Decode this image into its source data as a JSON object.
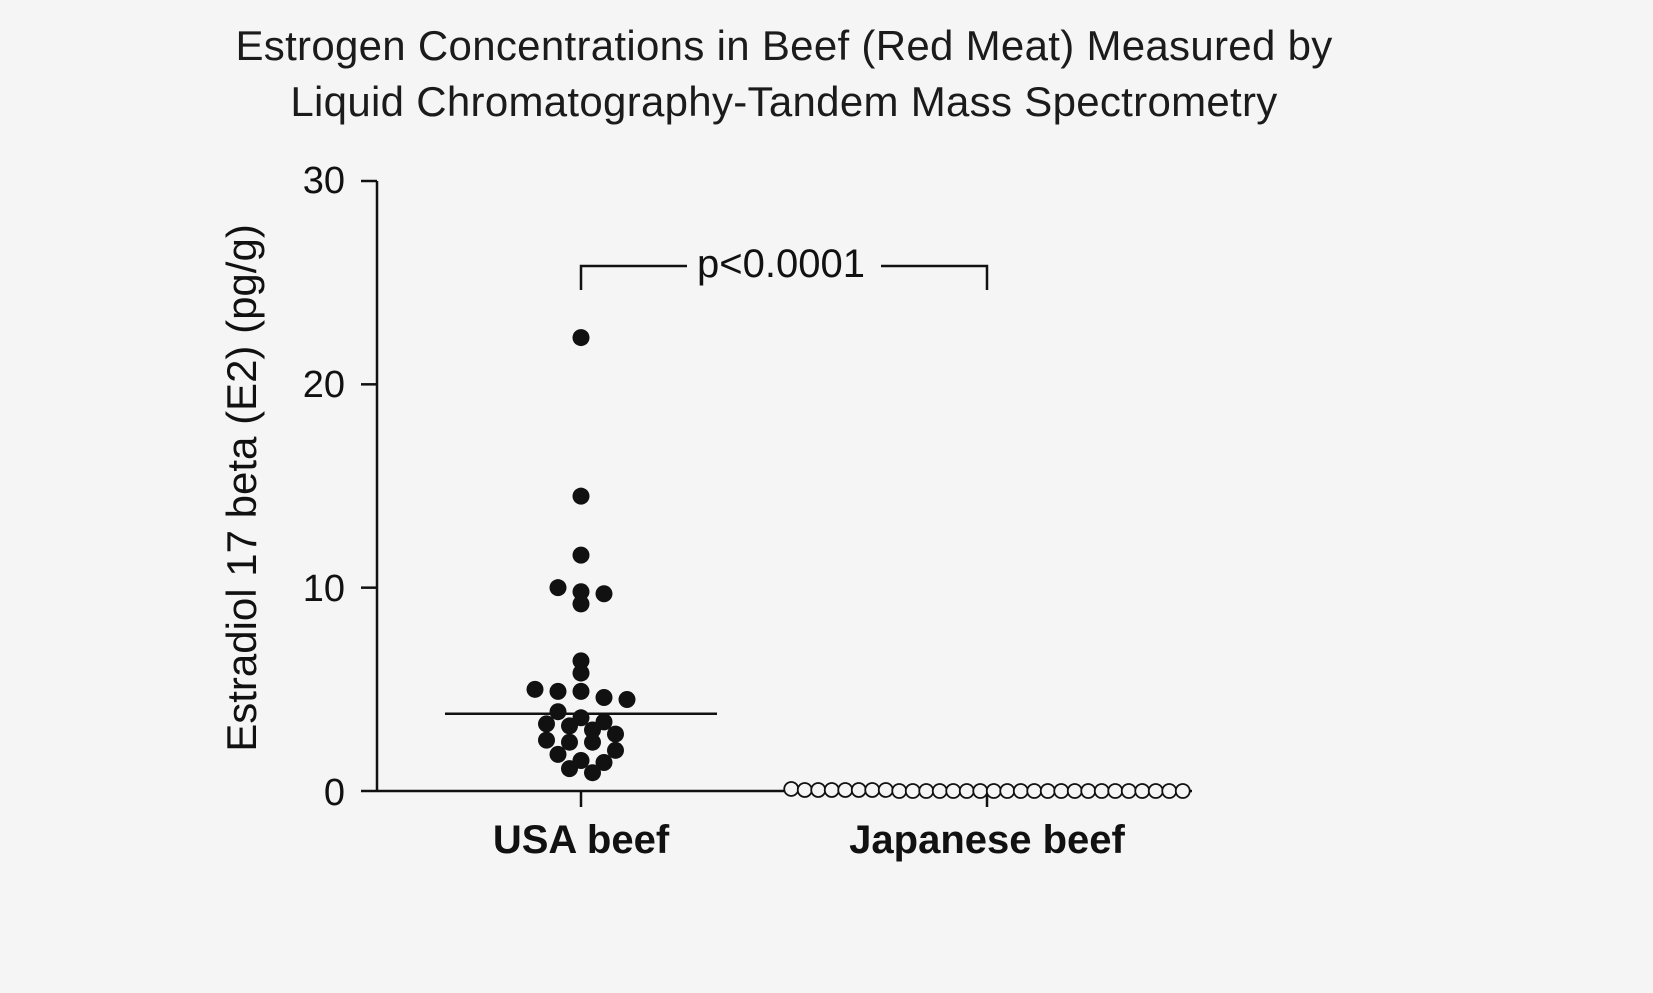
{
  "title_line1": "Estrogen Concentrations in Beef (Red Meat) Measured by",
  "title_line2": "Liquid Chromatography-Tandem Mass Spectrometry",
  "ylabel": "Estradiol 17 beta (E2)  (pg/g)",
  "yticks": [
    "30",
    "20",
    "10",
    "0"
  ],
  "categories": [
    "USA beef",
    "Japanese beef"
  ],
  "annotation": "p<0.0001",
  "chart_data": {
    "type": "scatter",
    "title": "Estrogen Concentrations in Beef (Red Meat) Measured by Liquid Chromatography-Tandem Mass Spectrometry",
    "ylabel": "Estradiol 17 beta (E2)  (pg/g)",
    "xlabel": "",
    "ylim": [
      0,
      30
    ],
    "yticks": [
      0,
      10,
      20,
      30
    ],
    "categories": [
      "USA beef",
      "Japanese beef"
    ],
    "series": [
      {
        "category": "USA beef",
        "marker": "filled",
        "values": [
          22.3,
          14.5,
          11.6,
          10.0,
          9.7,
          9.8,
          9.2,
          6.4,
          5.8,
          4.9,
          4.9,
          5.0,
          4.6,
          4.5,
          3.9,
          3.6,
          3.4,
          3.2,
          3.3,
          2.8,
          3.0,
          2.4,
          2.4,
          2.5,
          1.8,
          2.0,
          1.4,
          1.5,
          1.1,
          0.9
        ],
        "median": 3.8
      },
      {
        "category": "Japanese beef",
        "marker": "open",
        "values": [
          0.0,
          0.0,
          0.0,
          0.0,
          0.05,
          0.05,
          0.0,
          0.0,
          0.0,
          0.05,
          0.0,
          0.0,
          0.0,
          0.0,
          0.0,
          0.0,
          0.0,
          0.05,
          0.0,
          0.0,
          0.0,
          0.05,
          0.0,
          0.0,
          0.05,
          0.0,
          0.05,
          0.0,
          0.1,
          0.0
        ],
        "median": 0.0
      }
    ],
    "annotation": "p<0.0001",
    "grid": false,
    "legend": "none"
  }
}
